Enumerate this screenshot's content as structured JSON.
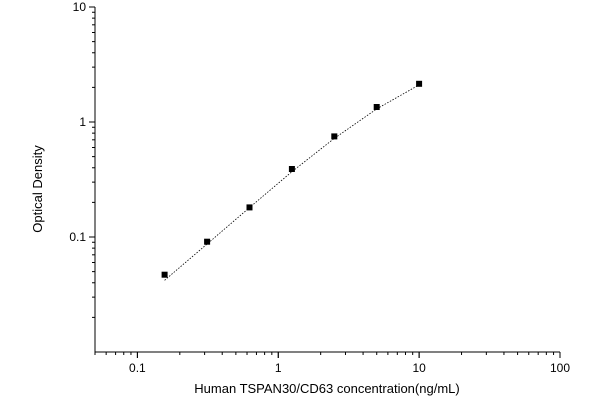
{
  "chart_data": {
    "type": "scatter",
    "title": "",
    "xlabel": "Human TSPAN30/CD63 concentration(ng/mL)",
    "ylabel": "Optical Density",
    "x_scale": "log",
    "y_scale": "log",
    "xlim": [
      0.05,
      100
    ],
    "ylim": [
      0.01,
      10
    ],
    "x_major_ticks": [
      {
        "value": 0.1,
        "label": "0.1"
      },
      {
        "value": 1,
        "label": "1"
      },
      {
        "value": 10,
        "label": "10"
      },
      {
        "value": 100,
        "label": "100"
      }
    ],
    "y_major_ticks": [
      {
        "value": 0.1,
        "label": "0.1"
      },
      {
        "value": 1,
        "label": "1"
      },
      {
        "value": 10,
        "label": "10"
      }
    ],
    "grid": false,
    "legend": false,
    "series": [
      {
        "marker": "square",
        "color": "#000000",
        "points": [
          {
            "x": 0.156,
            "y": 0.047
          },
          {
            "x": 0.3125,
            "y": 0.091
          },
          {
            "x": 0.625,
            "y": 0.181
          },
          {
            "x": 1.25,
            "y": 0.39
          },
          {
            "x": 2.5,
            "y": 0.75
          },
          {
            "x": 5,
            "y": 1.35
          },
          {
            "x": 10,
            "y": 2.15
          }
        ]
      }
    ],
    "fit_curve": {
      "style": "dotted",
      "color": "#000000",
      "points": [
        {
          "x": 0.156,
          "y": 0.042
        },
        {
          "x": 0.3125,
          "y": 0.087
        },
        {
          "x": 0.625,
          "y": 0.18
        },
        {
          "x": 1.25,
          "y": 0.37
        },
        {
          "x": 2.5,
          "y": 0.72
        },
        {
          "x": 5,
          "y": 1.3
        },
        {
          "x": 10,
          "y": 2.1
        }
      ]
    }
  }
}
